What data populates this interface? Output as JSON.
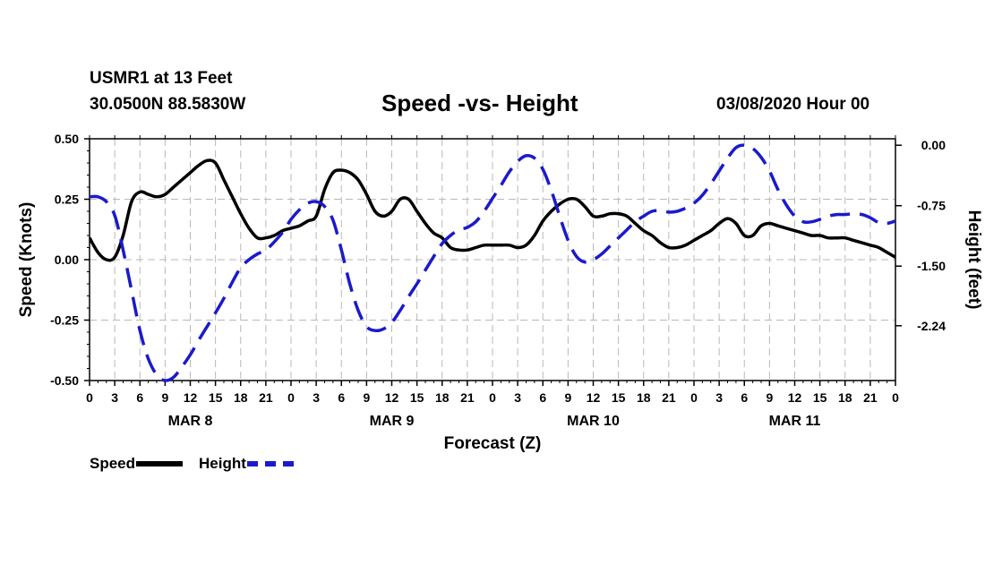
{
  "header": {
    "station": "USMR1 at 13 Feet",
    "coords": "30.0500N 88.5830W",
    "title": "Speed -vs- Height",
    "datetime": "03/08/2020 Hour 00"
  },
  "chart_data": {
    "type": "line",
    "title": "Speed -vs- Height",
    "xlabel": "Forecast (Z)",
    "ylabel_left": "Speed (Knots)",
    "ylabel_right": "Height (feet)",
    "x_range_hours": [
      0,
      96
    ],
    "x_ticks": [
      "0",
      "3",
      "6",
      "9",
      "12",
      "15",
      "18",
      "21",
      "0",
      "3",
      "6",
      "9",
      "12",
      "15",
      "18",
      "21",
      "0",
      "3",
      "6",
      "9",
      "12",
      "15",
      "18",
      "21",
      "0",
      "3",
      "6",
      "9",
      "12",
      "15",
      "18",
      "21",
      "0"
    ],
    "day_labels": [
      "MAR 8",
      "MAR 9",
      "MAR 10",
      "MAR 11"
    ],
    "y_left": {
      "range": [
        -0.5,
        0.5
      ],
      "ticks": [
        "0.50",
        "0.25",
        "0.00",
        "-0.25",
        "-0.50"
      ],
      "tick_values": [
        0.5,
        0.25,
        0,
        -0.25,
        -0.5
      ]
    },
    "y_right": {
      "range": [
        -2.92,
        0.08
      ],
      "ticks": [
        "0.00",
        "-0.75",
        "-1.50",
        "-2.24"
      ],
      "tick_values": [
        0,
        -0.75,
        -1.5,
        -2.24
      ]
    },
    "grid": true,
    "series": [
      {
        "name": "Speed",
        "axis": "left",
        "color": "#000000",
        "dash": "solid",
        "x": [
          0,
          1,
          2,
          3,
          4,
          5,
          6,
          7,
          8,
          9,
          10,
          11,
          12,
          13,
          14,
          15,
          16,
          17,
          18,
          19,
          20,
          21,
          22,
          23,
          24,
          25,
          26,
          27,
          28,
          29,
          30,
          31,
          32,
          33,
          34,
          35,
          36,
          37,
          38,
          39,
          40,
          41,
          42,
          43,
          44,
          45,
          46,
          47,
          48,
          49,
          50,
          51,
          52,
          53,
          54,
          55,
          56,
          57,
          58,
          59,
          60,
          61,
          62,
          63,
          64,
          65,
          66,
          67,
          68,
          69,
          70,
          71,
          72,
          73,
          74,
          75,
          76,
          77,
          78,
          79,
          80,
          81,
          82,
          83,
          84,
          85,
          86,
          87,
          88,
          89,
          90,
          91,
          92,
          93,
          94,
          95,
          96
        ],
        "values": [
          0.09,
          0.03,
          0.0,
          0.01,
          0.1,
          0.24,
          0.28,
          0.27,
          0.26,
          0.27,
          0.3,
          0.33,
          0.36,
          0.39,
          0.41,
          0.4,
          0.33,
          0.26,
          0.19,
          0.13,
          0.09,
          0.09,
          0.1,
          0.12,
          0.13,
          0.14,
          0.16,
          0.18,
          0.29,
          0.36,
          0.37,
          0.36,
          0.33,
          0.27,
          0.2,
          0.18,
          0.2,
          0.25,
          0.25,
          0.2,
          0.15,
          0.11,
          0.09,
          0.05,
          0.04,
          0.04,
          0.05,
          0.06,
          0.06,
          0.06,
          0.06,
          0.05,
          0.06,
          0.1,
          0.16,
          0.2,
          0.23,
          0.25,
          0.25,
          0.22,
          0.18,
          0.18,
          0.19,
          0.19,
          0.18,
          0.15,
          0.12,
          0.1,
          0.07,
          0.05,
          0.05,
          0.06,
          0.08,
          0.1,
          0.12,
          0.15,
          0.17,
          0.15,
          0.1,
          0.1,
          0.14,
          0.15,
          0.14,
          0.13,
          0.12,
          0.11,
          0.1,
          0.1,
          0.09,
          0.09,
          0.09,
          0.08,
          0.07,
          0.06,
          0.05,
          0.03,
          0.01
        ]
      },
      {
        "name": "Height",
        "axis": "right",
        "color": "#1a1acc",
        "dash": "dashed",
        "x": [
          0,
          1,
          2,
          3,
          4,
          5,
          6,
          7,
          8,
          9,
          10,
          11,
          12,
          13,
          14,
          15,
          16,
          17,
          18,
          19,
          20,
          21,
          22,
          23,
          24,
          25,
          26,
          27,
          28,
          29,
          30,
          31,
          32,
          33,
          34,
          35,
          36,
          37,
          38,
          39,
          40,
          41,
          42,
          43,
          44,
          45,
          46,
          47,
          48,
          49,
          50,
          51,
          52,
          53,
          54,
          55,
          56,
          57,
          58,
          59,
          60,
          61,
          62,
          63,
          64,
          65,
          66,
          67,
          68,
          69,
          70,
          71,
          72,
          73,
          74,
          75,
          76,
          77,
          78,
          79,
          80,
          81,
          82,
          83,
          84,
          85,
          86,
          87,
          88,
          89,
          90,
          91,
          92,
          93,
          94,
          95,
          96
        ],
        "values": [
          -0.64,
          -0.64,
          -0.7,
          -0.87,
          -1.3,
          -1.8,
          -2.3,
          -2.65,
          -2.85,
          -2.92,
          -2.88,
          -2.75,
          -2.6,
          -2.42,
          -2.25,
          -2.08,
          -1.9,
          -1.7,
          -1.52,
          -1.42,
          -1.35,
          -1.3,
          -1.2,
          -1.08,
          -0.92,
          -0.8,
          -0.72,
          -0.7,
          -0.76,
          -0.93,
          -1.3,
          -1.72,
          -2.05,
          -2.25,
          -2.3,
          -2.28,
          -2.2,
          -2.05,
          -1.88,
          -1.72,
          -1.55,
          -1.38,
          -1.22,
          -1.12,
          -1.05,
          -1.02,
          -0.95,
          -0.82,
          -0.66,
          -0.5,
          -0.33,
          -0.2,
          -0.13,
          -0.16,
          -0.3,
          -0.56,
          -0.88,
          -1.18,
          -1.38,
          -1.45,
          -1.42,
          -1.35,
          -1.25,
          -1.15,
          -1.05,
          -0.95,
          -0.88,
          -0.82,
          -0.81,
          -0.83,
          -0.82,
          -0.78,
          -0.72,
          -0.62,
          -0.48,
          -0.32,
          -0.16,
          -0.03,
          0.0,
          -0.04,
          -0.15,
          -0.32,
          -0.55,
          -0.74,
          -0.88,
          -0.95,
          -0.95,
          -0.92,
          -0.88,
          -0.86,
          -0.86,
          -0.85,
          -0.86,
          -0.9,
          -0.96,
          -0.97,
          -0.94
        ]
      }
    ]
  },
  "legend": {
    "speed_label": "Speed",
    "height_label": "Height"
  }
}
